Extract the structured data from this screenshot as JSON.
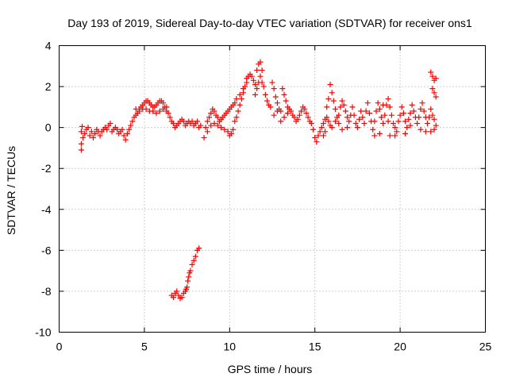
{
  "chart_data": {
    "type": "scatter",
    "title": "Day 193 of 2019, Sidereal Day-to-day VTEC variation (SDTVAR) for receiver ons1",
    "xlabel": "GPS time / hours",
    "ylabel": "SDTVAR / TECUs",
    "xlim": [
      0,
      25
    ],
    "ylim": [
      -10,
      4
    ],
    "xticks": [
      0,
      5,
      10,
      15,
      20,
      25
    ],
    "yticks": [
      -10,
      -8,
      -6,
      -4,
      -2,
      0,
      2,
      4
    ],
    "xtick_labels": [
      "0",
      "5",
      "10",
      "15",
      "20",
      "25"
    ],
    "ytick_labels": [
      "-10",
      "-8",
      "-6",
      "-4",
      "-2",
      "0",
      "2",
      "4"
    ],
    "grid": true,
    "marker": "+",
    "color": "#ff0000",
    "series": [
      {
        "name": "main",
        "points": [
          [
            1.3,
            -0.8
          ],
          [
            1.3,
            -1.1
          ],
          [
            1.3,
            -0.2
          ],
          [
            1.35,
            0.05
          ],
          [
            1.4,
            -0.5
          ],
          [
            1.5,
            -0.3
          ],
          [
            1.6,
            -0.1
          ],
          [
            1.7,
            0.0
          ],
          [
            1.8,
            -0.4
          ],
          [
            1.9,
            -0.2
          ],
          [
            2.0,
            -0.5
          ],
          [
            2.1,
            -0.3
          ],
          [
            2.2,
            -0.1
          ],
          [
            2.3,
            -0.2
          ],
          [
            2.4,
            -0.4
          ],
          [
            2.5,
            -0.2
          ],
          [
            2.6,
            -0.1
          ],
          [
            2.7,
            0.0
          ],
          [
            2.8,
            -0.1
          ],
          [
            2.9,
            0.1
          ],
          [
            3.0,
            0.2
          ],
          [
            3.1,
            -0.2
          ],
          [
            3.2,
            -0.1
          ],
          [
            3.3,
            0.0
          ],
          [
            3.4,
            -0.1
          ],
          [
            3.5,
            -0.3
          ],
          [
            3.6,
            -0.2
          ],
          [
            3.7,
            -0.1
          ],
          [
            3.8,
            -0.4
          ],
          [
            3.9,
            -0.6
          ],
          [
            4.0,
            -0.3
          ],
          [
            4.1,
            -0.1
          ],
          [
            4.2,
            0.1
          ],
          [
            4.3,
            0.3
          ],
          [
            4.4,
            0.5
          ],
          [
            4.5,
            0.6
          ],
          [
            4.6,
            0.7
          ],
          [
            4.7,
            0.9
          ],
          [
            4.8,
            1.0
          ],
          [
            4.9,
            1.1
          ],
          [
            5.0,
            1.2
          ],
          [
            5.1,
            1.3
          ],
          [
            5.2,
            1.3
          ],
          [
            5.3,
            1.2
          ],
          [
            5.4,
            1.1
          ],
          [
            5.5,
            1.0
          ],
          [
            5.6,
            1.0
          ],
          [
            5.7,
            1.1
          ],
          [
            5.8,
            1.2
          ],
          [
            5.9,
            1.3
          ],
          [
            6.0,
            1.3
          ],
          [
            6.1,
            1.2
          ],
          [
            6.2,
            1.0
          ],
          [
            6.3,
            0.8
          ],
          [
            6.4,
            0.7
          ],
          [
            6.5,
            0.5
          ],
          [
            6.6,
            0.3
          ],
          [
            6.7,
            0.2
          ],
          [
            6.8,
            0.0
          ],
          [
            6.9,
            0.1
          ],
          [
            4.5,
            0.9
          ],
          [
            4.7,
            0.8
          ],
          [
            4.9,
            0.9
          ],
          [
            5.1,
            0.9
          ],
          [
            5.3,
            0.8
          ],
          [
            5.5,
            0.8
          ],
          [
            5.7,
            0.7
          ],
          [
            5.9,
            0.8
          ],
          [
            6.1,
            0.9
          ],
          [
            6.3,
            1.0
          ],
          [
            7.0,
            0.2
          ],
          [
            7.1,
            0.3
          ],
          [
            7.2,
            0.4
          ],
          [
            7.3,
            0.3
          ],
          [
            7.4,
            0.1
          ],
          [
            7.5,
            0.2
          ],
          [
            7.6,
            0.3
          ],
          [
            7.7,
            0.2
          ],
          [
            7.8,
            0.3
          ],
          [
            7.9,
            0.1
          ],
          [
            8.0,
            0.2
          ],
          [
            8.1,
            0.3
          ],
          [
            8.2,
            0.0
          ],
          [
            8.3,
            0.1
          ],
          [
            8.5,
            -0.5
          ],
          [
            8.6,
            0.0
          ],
          [
            8.7,
            0.3
          ],
          [
            8.8,
            0.5
          ],
          [
            8.9,
            0.7
          ],
          [
            9.0,
            0.9
          ],
          [
            9.1,
            0.8
          ],
          [
            9.2,
            0.6
          ],
          [
            9.3,
            0.5
          ],
          [
            9.4,
            0.3
          ],
          [
            8.7,
            -0.2
          ],
          [
            8.9,
            0.1
          ],
          [
            9.1,
            0.2
          ],
          [
            9.3,
            0.1
          ],
          [
            9.5,
            0.0
          ],
          [
            9.7,
            -0.1
          ],
          [
            9.9,
            -0.2
          ],
          [
            10.0,
            -0.4
          ],
          [
            10.1,
            -0.3
          ],
          [
            10.2,
            -0.1
          ],
          [
            9.5,
            0.4
          ],
          [
            9.6,
            0.5
          ],
          [
            9.7,
            0.6
          ],
          [
            9.8,
            0.7
          ],
          [
            9.9,
            0.8
          ],
          [
            10.0,
            0.9
          ],
          [
            10.1,
            1.0
          ],
          [
            10.2,
            1.1
          ],
          [
            10.3,
            1.2
          ],
          [
            10.4,
            1.4
          ],
          [
            10.3,
            0.3
          ],
          [
            10.4,
            0.5
          ],
          [
            10.5,
            0.8
          ],
          [
            10.6,
            1.1
          ],
          [
            10.7,
            1.4
          ],
          [
            10.8,
            1.7
          ],
          [
            10.9,
            2.0
          ],
          [
            11.0,
            2.2
          ],
          [
            11.1,
            2.5
          ],
          [
            11.2,
            2.6
          ],
          [
            10.6,
            1.6
          ],
          [
            10.8,
            1.9
          ],
          [
            11.0,
            2.4
          ],
          [
            11.3,
            2.5
          ],
          [
            11.4,
            2.3
          ],
          [
            11.5,
            2.1
          ],
          [
            11.6,
            2.8
          ],
          [
            11.7,
            3.1
          ],
          [
            11.8,
            3.2
          ],
          [
            11.9,
            2.8
          ],
          [
            11.5,
            1.6
          ],
          [
            11.6,
            1.9
          ],
          [
            11.7,
            2.2
          ],
          [
            11.8,
            2.5
          ],
          [
            11.9,
            2.2
          ],
          [
            12.0,
            2.0
          ],
          [
            12.1,
            1.6
          ],
          [
            12.2,
            1.3
          ],
          [
            12.3,
            1.1
          ],
          [
            12.4,
            1.0
          ],
          [
            12.5,
            2.2
          ],
          [
            12.6,
            1.9
          ],
          [
            12.7,
            1.5
          ],
          [
            12.8,
            1.2
          ],
          [
            12.9,
            0.9
          ],
          [
            13.0,
            0.8
          ],
          [
            13.1,
            1.9
          ],
          [
            13.2,
            1.6
          ],
          [
            13.3,
            1.3
          ],
          [
            13.4,
            1.0
          ],
          [
            12.6,
            0.6
          ],
          [
            12.8,
            0.8
          ],
          [
            13.0,
            0.3
          ],
          [
            13.2,
            0.5
          ],
          [
            13.4,
            0.7
          ],
          [
            13.5,
            0.9
          ],
          [
            13.6,
            0.8
          ],
          [
            13.7,
            0.6
          ],
          [
            13.8,
            0.5
          ],
          [
            13.9,
            0.3
          ],
          [
            14.0,
            0.4
          ],
          [
            14.1,
            0.6
          ],
          [
            14.2,
            0.8
          ],
          [
            14.3,
            1.0
          ],
          [
            14.4,
            0.9
          ],
          [
            14.5,
            0.7
          ],
          [
            14.6,
            0.5
          ],
          [
            14.7,
            0.3
          ],
          [
            14.8,
            0.2
          ],
          [
            14.9,
            -0.1
          ],
          [
            15.0,
            -0.5
          ],
          [
            15.1,
            -0.7
          ],
          [
            15.2,
            -0.4
          ],
          [
            15.3,
            -0.2
          ],
          [
            15.4,
            0.0
          ],
          [
            15.5,
            0.2
          ],
          [
            15.6,
            0.4
          ],
          [
            15.7,
            0.5
          ],
          [
            15.8,
            0.3
          ],
          [
            15.9,
            0.1
          ],
          [
            15.5,
            -0.4
          ],
          [
            15.6,
            -0.2
          ],
          [
            15.7,
            1.0
          ],
          [
            15.8,
            1.4
          ],
          [
            15.9,
            2.1
          ],
          [
            16.0,
            1.7
          ],
          [
            16.1,
            1.3
          ],
          [
            16.2,
            0.9
          ],
          [
            16.3,
            0.5
          ],
          [
            16.4,
            0.2
          ],
          [
            16.0,
            0.0
          ],
          [
            16.2,
            0.3
          ],
          [
            16.4,
            0.6
          ],
          [
            16.5,
            1.0
          ],
          [
            16.6,
            1.3
          ],
          [
            16.7,
            1.1
          ],
          [
            16.8,
            0.8
          ],
          [
            16.9,
            0.5
          ],
          [
            17.0,
            0.3
          ],
          [
            17.1,
            0.6
          ],
          [
            17.2,
            1.0
          ],
          [
            17.3,
            0.6
          ],
          [
            17.4,
            0.2
          ],
          [
            17.5,
            0.0
          ],
          [
            17.6,
            0.4
          ],
          [
            17.7,
            0.8
          ],
          [
            17.8,
            0.5
          ],
          [
            17.9,
            0.2
          ],
          [
            16.6,
            -0.1
          ],
          [
            16.9,
            0.0
          ],
          [
            18.0,
            0.8
          ],
          [
            18.1,
            1.2
          ],
          [
            18.2,
            0.7
          ],
          [
            18.3,
            0.3
          ],
          [
            18.4,
            -0.1
          ],
          [
            18.5,
            0.3
          ],
          [
            18.6,
            0.8
          ],
          [
            18.7,
            1.2
          ],
          [
            18.8,
            0.9
          ],
          [
            18.9,
            0.5
          ],
          [
            19.0,
            0.2
          ],
          [
            19.1,
            0.6
          ],
          [
            19.2,
            1.1
          ],
          [
            19.3,
            1.4
          ],
          [
            19.4,
            1.0
          ],
          [
            19.5,
            0.6
          ],
          [
            19.6,
            0.2
          ],
          [
            19.7,
            0.0
          ],
          [
            19.8,
            -0.2
          ],
          [
            19.9,
            0.3
          ],
          [
            18.5,
            -0.4
          ],
          [
            18.8,
            -0.3
          ],
          [
            19.4,
            -0.4
          ],
          [
            19.7,
            -0.4
          ],
          [
            19.0,
            1.1
          ],
          [
            19.3,
            0.3
          ],
          [
            20.0,
            0.6
          ],
          [
            20.1,
            1.0
          ],
          [
            20.2,
            0.7
          ],
          [
            20.3,
            0.3
          ],
          [
            20.4,
            0.0
          ],
          [
            20.5,
            0.4
          ],
          [
            20.6,
            0.7
          ],
          [
            20.7,
            1.1
          ],
          [
            20.8,
            0.8
          ],
          [
            20.9,
            0.5
          ],
          [
            21.0,
            0.2
          ],
          [
            21.1,
            0.5
          ],
          [
            21.2,
            0.9
          ],
          [
            21.3,
            1.2
          ],
          [
            21.4,
            0.8
          ],
          [
            21.5,
            0.5
          ],
          [
            21.6,
            0.2
          ],
          [
            21.7,
            0.5
          ],
          [
            21.8,
            0.9
          ],
          [
            21.9,
            0.6
          ],
          [
            20.3,
            -0.3
          ],
          [
            20.6,
            0.1
          ],
          [
            21.2,
            -0.1
          ],
          [
            21.5,
            -0.2
          ],
          [
            21.8,
            -0.2
          ],
          [
            21.8,
            2.7
          ],
          [
            21.9,
            2.5
          ],
          [
            22.0,
            2.3
          ],
          [
            22.1,
            2.4
          ],
          [
            21.9,
            1.9
          ],
          [
            22.0,
            1.7
          ],
          [
            22.1,
            1.5
          ],
          [
            22.0,
            0.4
          ],
          [
            22.1,
            0.1
          ],
          [
            22.0,
            -0.1
          ]
        ]
      },
      {
        "name": "low",
        "points": [
          [
            6.6,
            -8.2
          ],
          [
            6.7,
            -8.3
          ],
          [
            6.8,
            -8.1
          ],
          [
            6.9,
            -8.0
          ],
          [
            7.0,
            -8.2
          ],
          [
            7.1,
            -8.35
          ],
          [
            7.2,
            -8.3
          ],
          [
            7.3,
            -8.1
          ],
          [
            7.4,
            -8.0
          ],
          [
            7.5,
            -7.8
          ],
          [
            7.55,
            -7.5
          ],
          [
            7.6,
            -7.3
          ],
          [
            7.7,
            -7.0
          ],
          [
            7.8,
            -6.7
          ],
          [
            7.9,
            -6.5
          ],
          [
            8.0,
            -6.3
          ],
          [
            8.1,
            -6.0
          ],
          [
            8.2,
            -5.9
          ],
          [
            7.45,
            -7.9
          ],
          [
            7.65,
            -7.1
          ]
        ]
      }
    ]
  }
}
